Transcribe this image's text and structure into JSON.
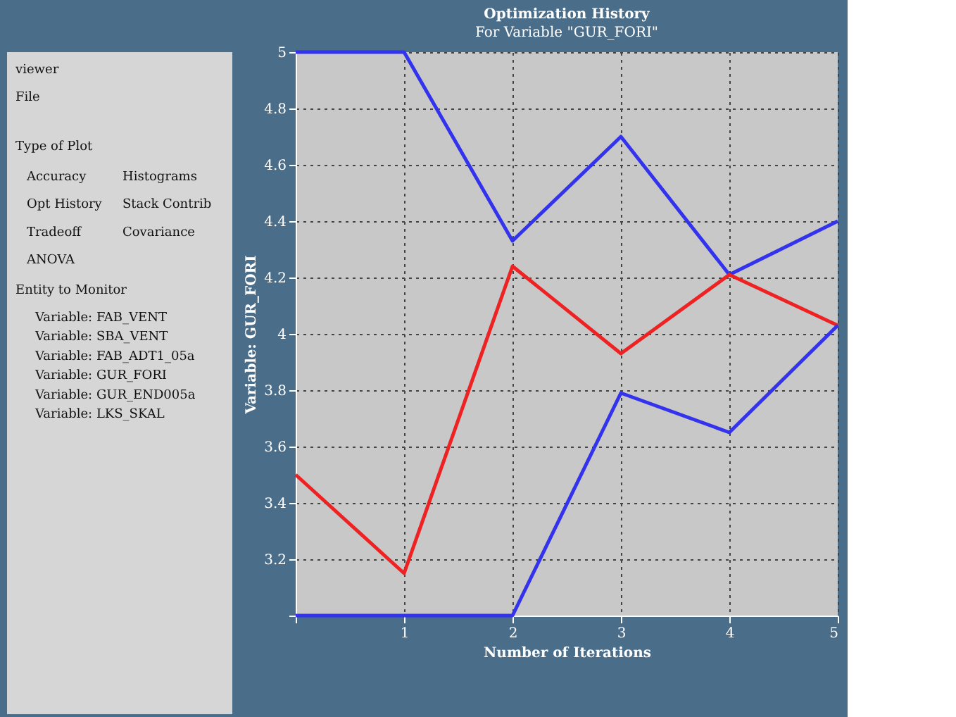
{
  "chart_data": {
    "type": "line",
    "title": "Optimization History",
    "subtitle": "For Variable \"GUR_FORI\"",
    "xlabel": "Number of Iterations",
    "ylabel": "Variable: GUR_FORI",
    "x": [
      0,
      1,
      2,
      3,
      4,
      5
    ],
    "series": [
      {
        "color": "#3333ee",
        "values": [
          5,
          5,
          4.33,
          4.7,
          4.21,
          4.4
        ]
      },
      {
        "color": "#ee2222",
        "values": [
          3.5,
          3.15,
          4.24,
          3.93,
          4.21,
          4.03
        ]
      },
      {
        "color": "#3333ee",
        "values": [
          3,
          3,
          3,
          3.79,
          3.65,
          4.03
        ]
      }
    ],
    "xlim": [
      0,
      5
    ],
    "xticks": [
      {
        "value": 0,
        "label": null
      },
      1,
      2,
      3,
      4,
      5
    ],
    "ylim": [
      3,
      5
    ],
    "yticks": [
      {
        "value": 3,
        "label": null
      },
      3.2,
      3.4,
      3.6,
      3.8,
      4,
      4.2,
      4.4,
      4.6,
      4.8,
      5
    ],
    "grid": true,
    "legend": false,
    "marker": "none",
    "line_style": "solid",
    "annotations": [
      "viewer",
      "File",
      "Type of Plot",
      "Accuracy",
      "Histograms",
      "Opt History",
      "Stack Contrib",
      "Tradeoff",
      "Covariance",
      "ANOVA",
      "Entity to Monitor",
      "Variable: FAB_VENT",
      "Variable: SBA_VENT",
      "Variable: FAB_ADT1_05a",
      "Variable: GUR_FORI",
      "Variable: GUR_END005a",
      "Variable: LKS_SKAL"
    ]
  }
}
